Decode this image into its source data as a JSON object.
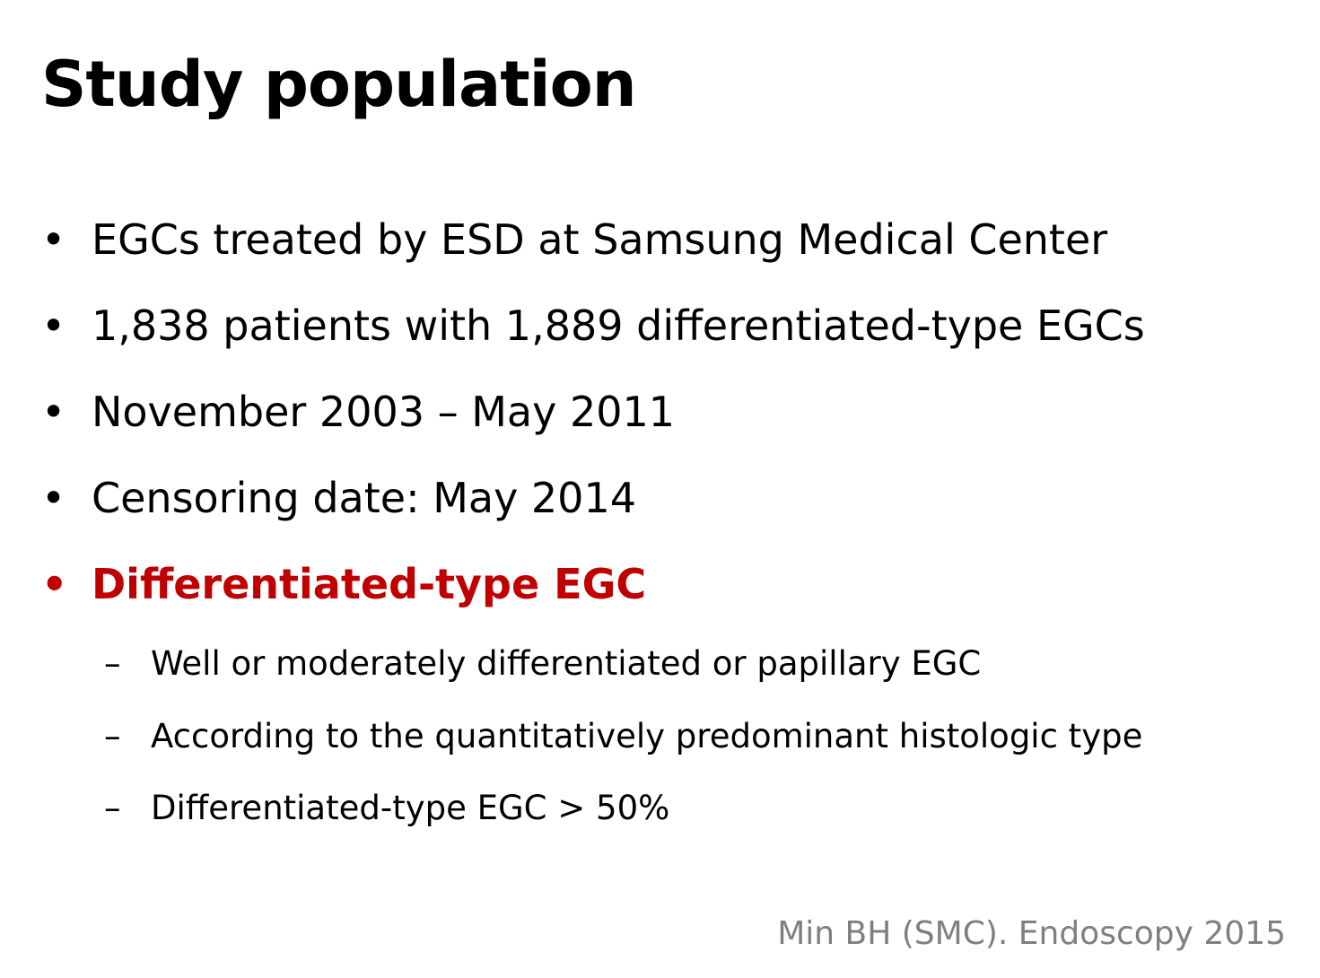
{
  "slide": {
    "title": "Study population",
    "accent_color": "#C00000",
    "bullets": [
      {
        "marker": "•",
        "text": "EGCs treated by ESD at Samsung Medical Center"
      },
      {
        "marker": "•",
        "text": "1,838 patients with 1,889 differentiated-type EGCs"
      },
      {
        "marker": "•",
        "text": "November 2003 – May 2011"
      },
      {
        "marker": "•",
        "text": "Censoring date: May 2014"
      },
      {
        "marker": "•",
        "text": "Differentiated-type EGC"
      }
    ],
    "sub_bullets": [
      {
        "marker": "–",
        "text": "Well or moderately differentiated or papillary EGC"
      },
      {
        "marker": "–",
        "text": "According to the quantitatively predominant histologic type"
      },
      {
        "marker": "–",
        "text": "Differentiated-type EGC > 50%"
      }
    ],
    "citation": "Min BH (SMC). Endoscopy 2015",
    "citation_color": "#7F7F7F"
  }
}
